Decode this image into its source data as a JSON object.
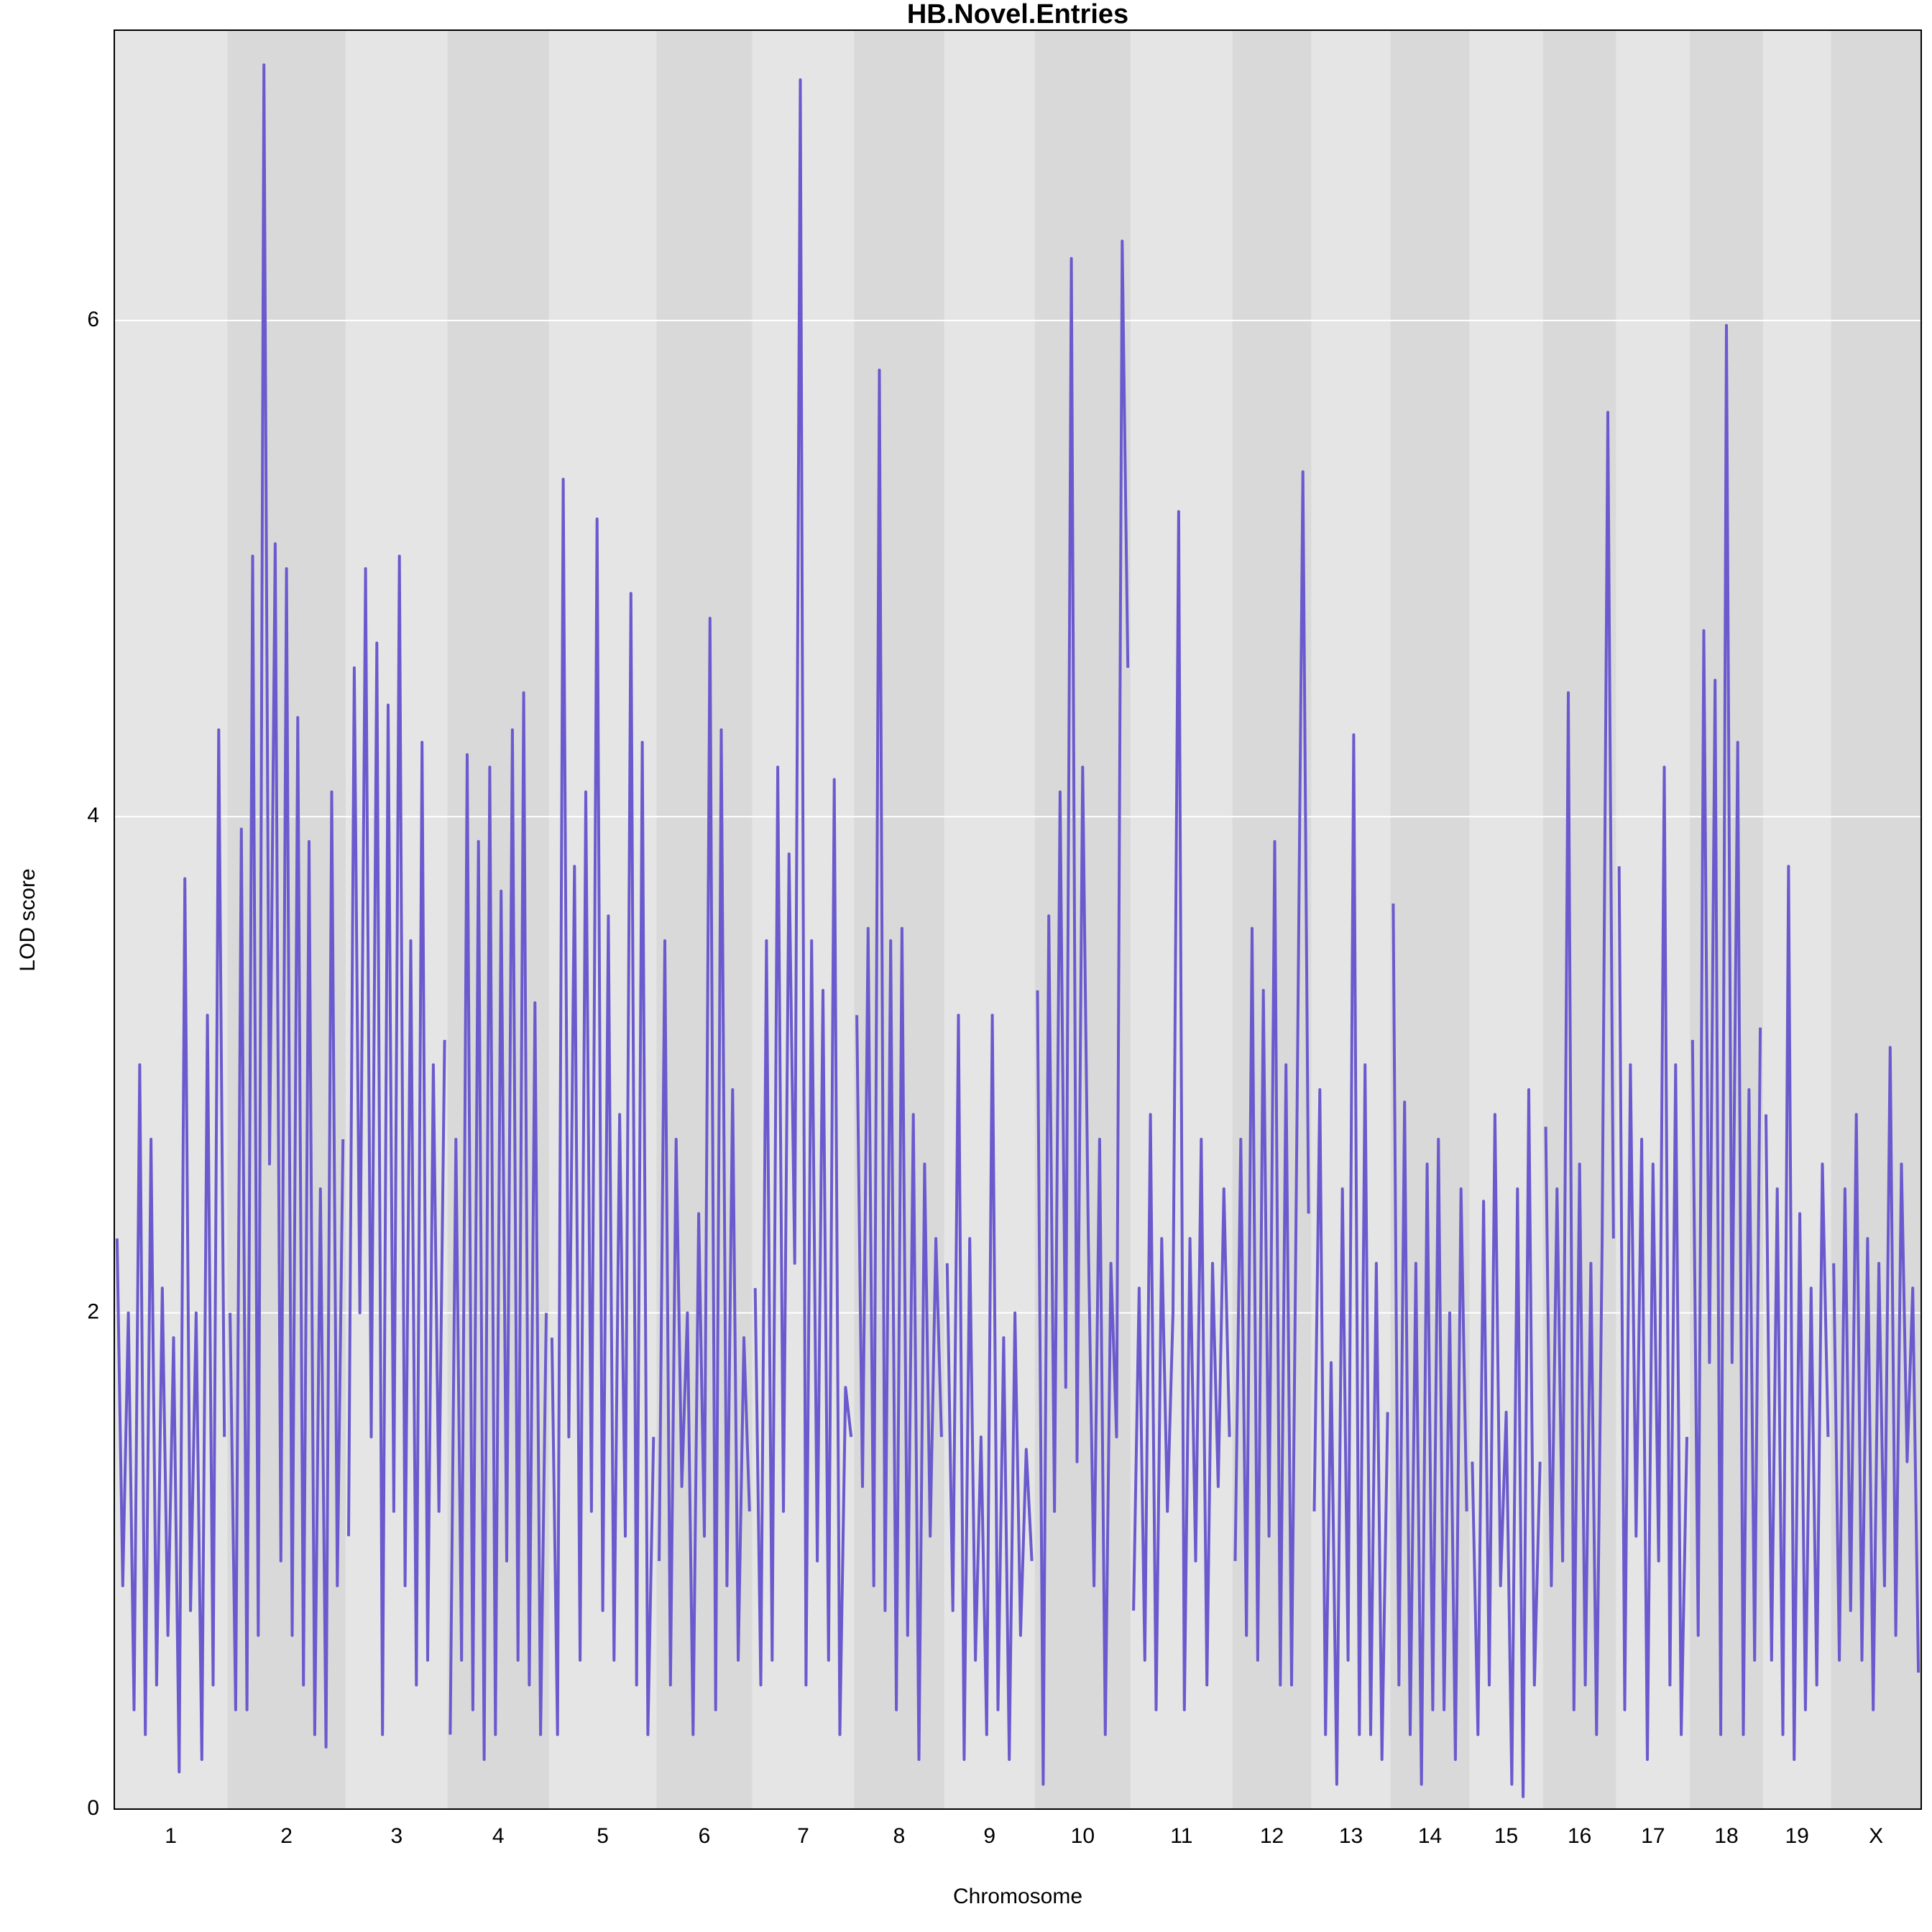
{
  "chart_data": {
    "type": "line",
    "title": "HB.Novel.Entries",
    "xlabel": "Chromosome",
    "ylabel": "LOD score",
    "color": "#6a5acd",
    "band_colors": [
      "#e5e5e5",
      "#d9d9d9"
    ],
    "grid_color": "#ffffff",
    "grid": true,
    "ylim": [
      0,
      7.17
    ],
    "yticks": [
      0,
      2,
      4,
      6
    ],
    "series": [
      {
        "name": "1",
        "values": [
          2.3,
          0.9,
          2.0,
          0.4,
          3.0,
          0.3,
          2.7,
          0.5,
          2.1,
          0.7,
          1.9,
          0.15,
          3.75,
          0.8,
          2.0,
          0.2,
          3.2,
          0.5,
          4.35,
          1.5
        ]
      },
      {
        "name": "2",
        "values": [
          2.0,
          0.4,
          3.95,
          0.4,
          5.05,
          0.7,
          7.03,
          2.6,
          5.1,
          1.0,
          5.0,
          0.7,
          4.4,
          0.5,
          3.9,
          0.3,
          2.5,
          0.25,
          4.1,
          0.9,
          2.7
        ]
      },
      {
        "name": "3",
        "values": [
          1.1,
          4.6,
          2.0,
          5.0,
          1.5,
          4.7,
          0.3,
          4.45,
          1.2,
          5.05,
          0.9,
          3.5,
          0.5,
          4.3,
          0.6,
          3.0,
          1.2,
          3.1
        ]
      },
      {
        "name": "4",
        "values": [
          0.3,
          2.7,
          0.6,
          4.25,
          0.4,
          3.9,
          0.2,
          4.2,
          0.3,
          3.7,
          1.0,
          4.35,
          0.6,
          4.5,
          0.5,
          3.25,
          0.3,
          2.0
        ]
      },
      {
        "name": "5",
        "values": [
          1.9,
          0.3,
          5.36,
          1.5,
          3.8,
          0.6,
          4.1,
          1.2,
          5.2,
          0.8,
          3.6,
          0.6,
          2.8,
          1.1,
          4.9,
          0.5,
          4.3,
          0.3,
          1.5
        ]
      },
      {
        "name": "6",
        "values": [
          1.0,
          3.5,
          0.5,
          2.7,
          1.3,
          2.0,
          0.3,
          2.4,
          1.1,
          4.8,
          0.4,
          4.35,
          0.9,
          2.9,
          0.6,
          1.9,
          1.2
        ]
      },
      {
        "name": "7",
        "values": [
          2.1,
          0.5,
          3.5,
          0.6,
          4.2,
          1.2,
          3.85,
          2.2,
          6.97,
          0.5,
          3.5,
          1.0,
          3.3,
          0.6,
          4.15,
          0.3,
          1.7,
          1.5
        ]
      },
      {
        "name": "8",
        "values": [
          3.2,
          1.3,
          3.55,
          0.9,
          5.8,
          0.8,
          3.5,
          0.4,
          3.55,
          0.7,
          2.8,
          0.2,
          2.6,
          1.1,
          2.3,
          1.5
        ]
      },
      {
        "name": "9",
        "values": [
          2.2,
          0.8,
          3.2,
          0.2,
          2.3,
          0.6,
          1.5,
          0.3,
          3.2,
          0.4,
          1.9,
          0.2,
          2.0,
          0.7,
          1.45,
          1.0
        ]
      },
      {
        "name": "10",
        "values": [
          3.3,
          0.1,
          3.6,
          1.2,
          4.1,
          1.7,
          6.25,
          1.4,
          4.2,
          2.3,
          0.9,
          2.7,
          0.3,
          2.2,
          1.5,
          6.32,
          4.6
        ]
      },
      {
        "name": "11",
        "values": [
          0.8,
          2.1,
          0.6,
          2.8,
          0.4,
          2.3,
          1.2,
          2.0,
          5.23,
          0.4,
          2.3,
          1.0,
          2.7,
          0.5,
          2.2,
          1.3,
          2.5,
          1.5
        ]
      },
      {
        "name": "12",
        "values": [
          1.0,
          2.7,
          0.7,
          3.55,
          0.6,
          3.3,
          1.1,
          3.9,
          0.5,
          3.0,
          0.5,
          2.9,
          5.39,
          2.4
        ]
      },
      {
        "name": "13",
        "values": [
          1.2,
          2.9,
          0.3,
          1.8,
          0.1,
          2.5,
          0.6,
          4.33,
          0.3,
          3.0,
          0.3,
          2.2,
          0.2,
          1.6
        ]
      },
      {
        "name": "14",
        "values": [
          3.65,
          0.5,
          2.85,
          0.3,
          2.2,
          0.1,
          2.6,
          0.4,
          2.7,
          0.4,
          2.0,
          0.2,
          2.5,
          1.2
        ]
      },
      {
        "name": "15",
        "values": [
          1.4,
          0.3,
          2.45,
          0.5,
          2.8,
          0.9,
          1.6,
          0.1,
          2.5,
          0.05,
          2.9,
          0.5,
          1.4
        ]
      },
      {
        "name": "16",
        "values": [
          2.75,
          0.9,
          2.5,
          1.0,
          4.5,
          0.4,
          2.6,
          0.5,
          2.2,
          0.3,
          2.3,
          5.63,
          2.3
        ]
      },
      {
        "name": "17",
        "values": [
          3.8,
          0.4,
          3.0,
          1.1,
          2.7,
          0.2,
          2.6,
          1.0,
          4.2,
          0.5,
          3.0,
          0.3,
          1.5
        ]
      },
      {
        "name": "18",
        "values": [
          3.1,
          0.7,
          4.75,
          1.8,
          4.55,
          0.3,
          5.98,
          1.8,
          4.3,
          0.3,
          2.9,
          0.6,
          3.15
        ]
      },
      {
        "name": "19",
        "values": [
          2.8,
          0.6,
          2.5,
          0.3,
          3.8,
          0.2,
          2.4,
          0.4,
          2.1,
          0.5,
          2.6,
          1.5
        ]
      },
      {
        "name": "X",
        "values": [
          2.2,
          0.6,
          2.5,
          0.8,
          2.8,
          0.6,
          2.3,
          0.4,
          2.2,
          0.9,
          3.07,
          0.7,
          2.6,
          1.4,
          2.1,
          0.55
        ]
      }
    ]
  }
}
